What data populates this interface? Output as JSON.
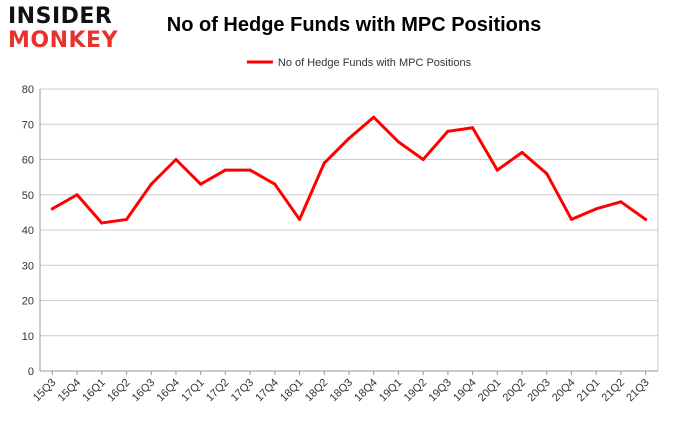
{
  "logo": {
    "line1": "INSIDER",
    "line2": "MONKEY"
  },
  "colors": {
    "series": "#ff0000",
    "grid": "#cccccc",
    "axis": "#999999",
    "text": "#333333",
    "logo_accent": "#e8322c"
  },
  "chart_data": {
    "type": "line",
    "title": "No of Hedge Funds with MPC Positions",
    "xlabel": "",
    "ylabel": "",
    "ylim": [
      0,
      80
    ],
    "yticks": [
      0,
      10,
      20,
      30,
      40,
      50,
      60,
      70,
      80
    ],
    "grid": true,
    "legend_position": "top-center",
    "categories": [
      "15Q3",
      "15Q4",
      "16Q1",
      "16Q2",
      "16Q3",
      "16Q4",
      "17Q1",
      "17Q2",
      "17Q3",
      "17Q4",
      "18Q1",
      "18Q2",
      "18Q3",
      "18Q4",
      "19Q1",
      "19Q2",
      "19Q3",
      "19Q4",
      "20Q1",
      "20Q2",
      "20Q3",
      "20Q4",
      "21Q1",
      "21Q2",
      "21Q3"
    ],
    "series": [
      {
        "name": "No of Hedge Funds with MPC Positions",
        "color": "#ff0000",
        "values": [
          46,
          50,
          42,
          43,
          53,
          60,
          53,
          57,
          57,
          53,
          43,
          59,
          66,
          72,
          65,
          60,
          68,
          69,
          57,
          62,
          56,
          43,
          46,
          48,
          43
        ]
      }
    ]
  }
}
